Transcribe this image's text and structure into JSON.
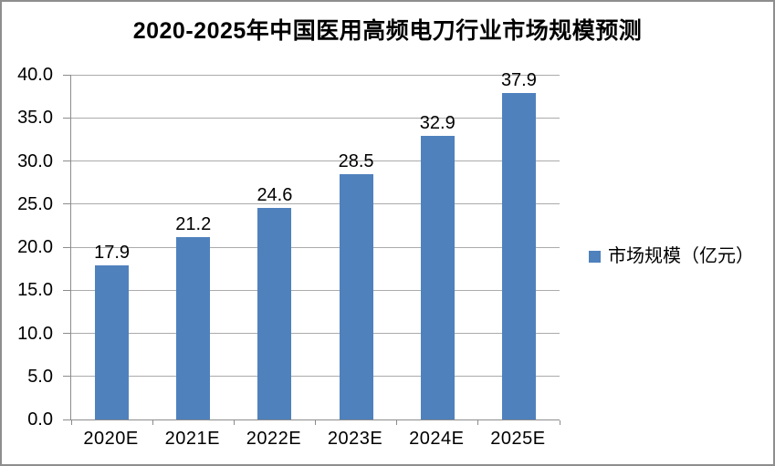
{
  "chart_data": {
    "type": "bar",
    "title": "2020-2025年中国医用高频电刀行业市场规模预测",
    "categories": [
      "2020E",
      "2021E",
      "2022E",
      "2023E",
      "2024E",
      "2025E"
    ],
    "series": [
      {
        "name": "市场规模（亿元）",
        "color": "#4F81BD",
        "values": [
          17.9,
          21.2,
          24.6,
          28.5,
          32.9,
          37.9
        ],
        "data_labels": [
          "17.9",
          "21.2",
          "24.6",
          "28.5",
          "32.9",
          "37.9"
        ]
      }
    ],
    "xlabel": "",
    "ylabel": "",
    "ylim": [
      0,
      40
    ],
    "ytick_step": 5,
    "ytick_labels": [
      "0.0",
      "5.0",
      "10.0",
      "15.0",
      "20.0",
      "25.0",
      "30.0",
      "35.0",
      "40.0"
    ],
    "grid": true,
    "legend": {
      "position": "right",
      "entries": [
        "市场规模（亿元）"
      ]
    },
    "colors": {
      "bar": "#4F81BD",
      "gridline": "#ABABAB",
      "axis": "#8C8C8C",
      "frame_border": "#8E8E8E",
      "text": "#000000",
      "background": "#FFFFFF"
    }
  }
}
